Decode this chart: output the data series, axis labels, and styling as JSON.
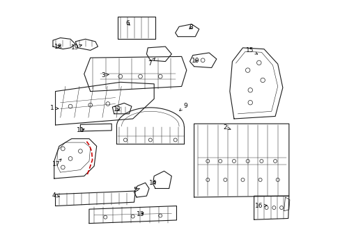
{
  "bg_color": "#ffffff",
  "line_color": "#1a1a1a",
  "label_color": "#000000",
  "red_line_color": "#cc0000",
  "fig_width": 4.89,
  "fig_height": 3.6
}
